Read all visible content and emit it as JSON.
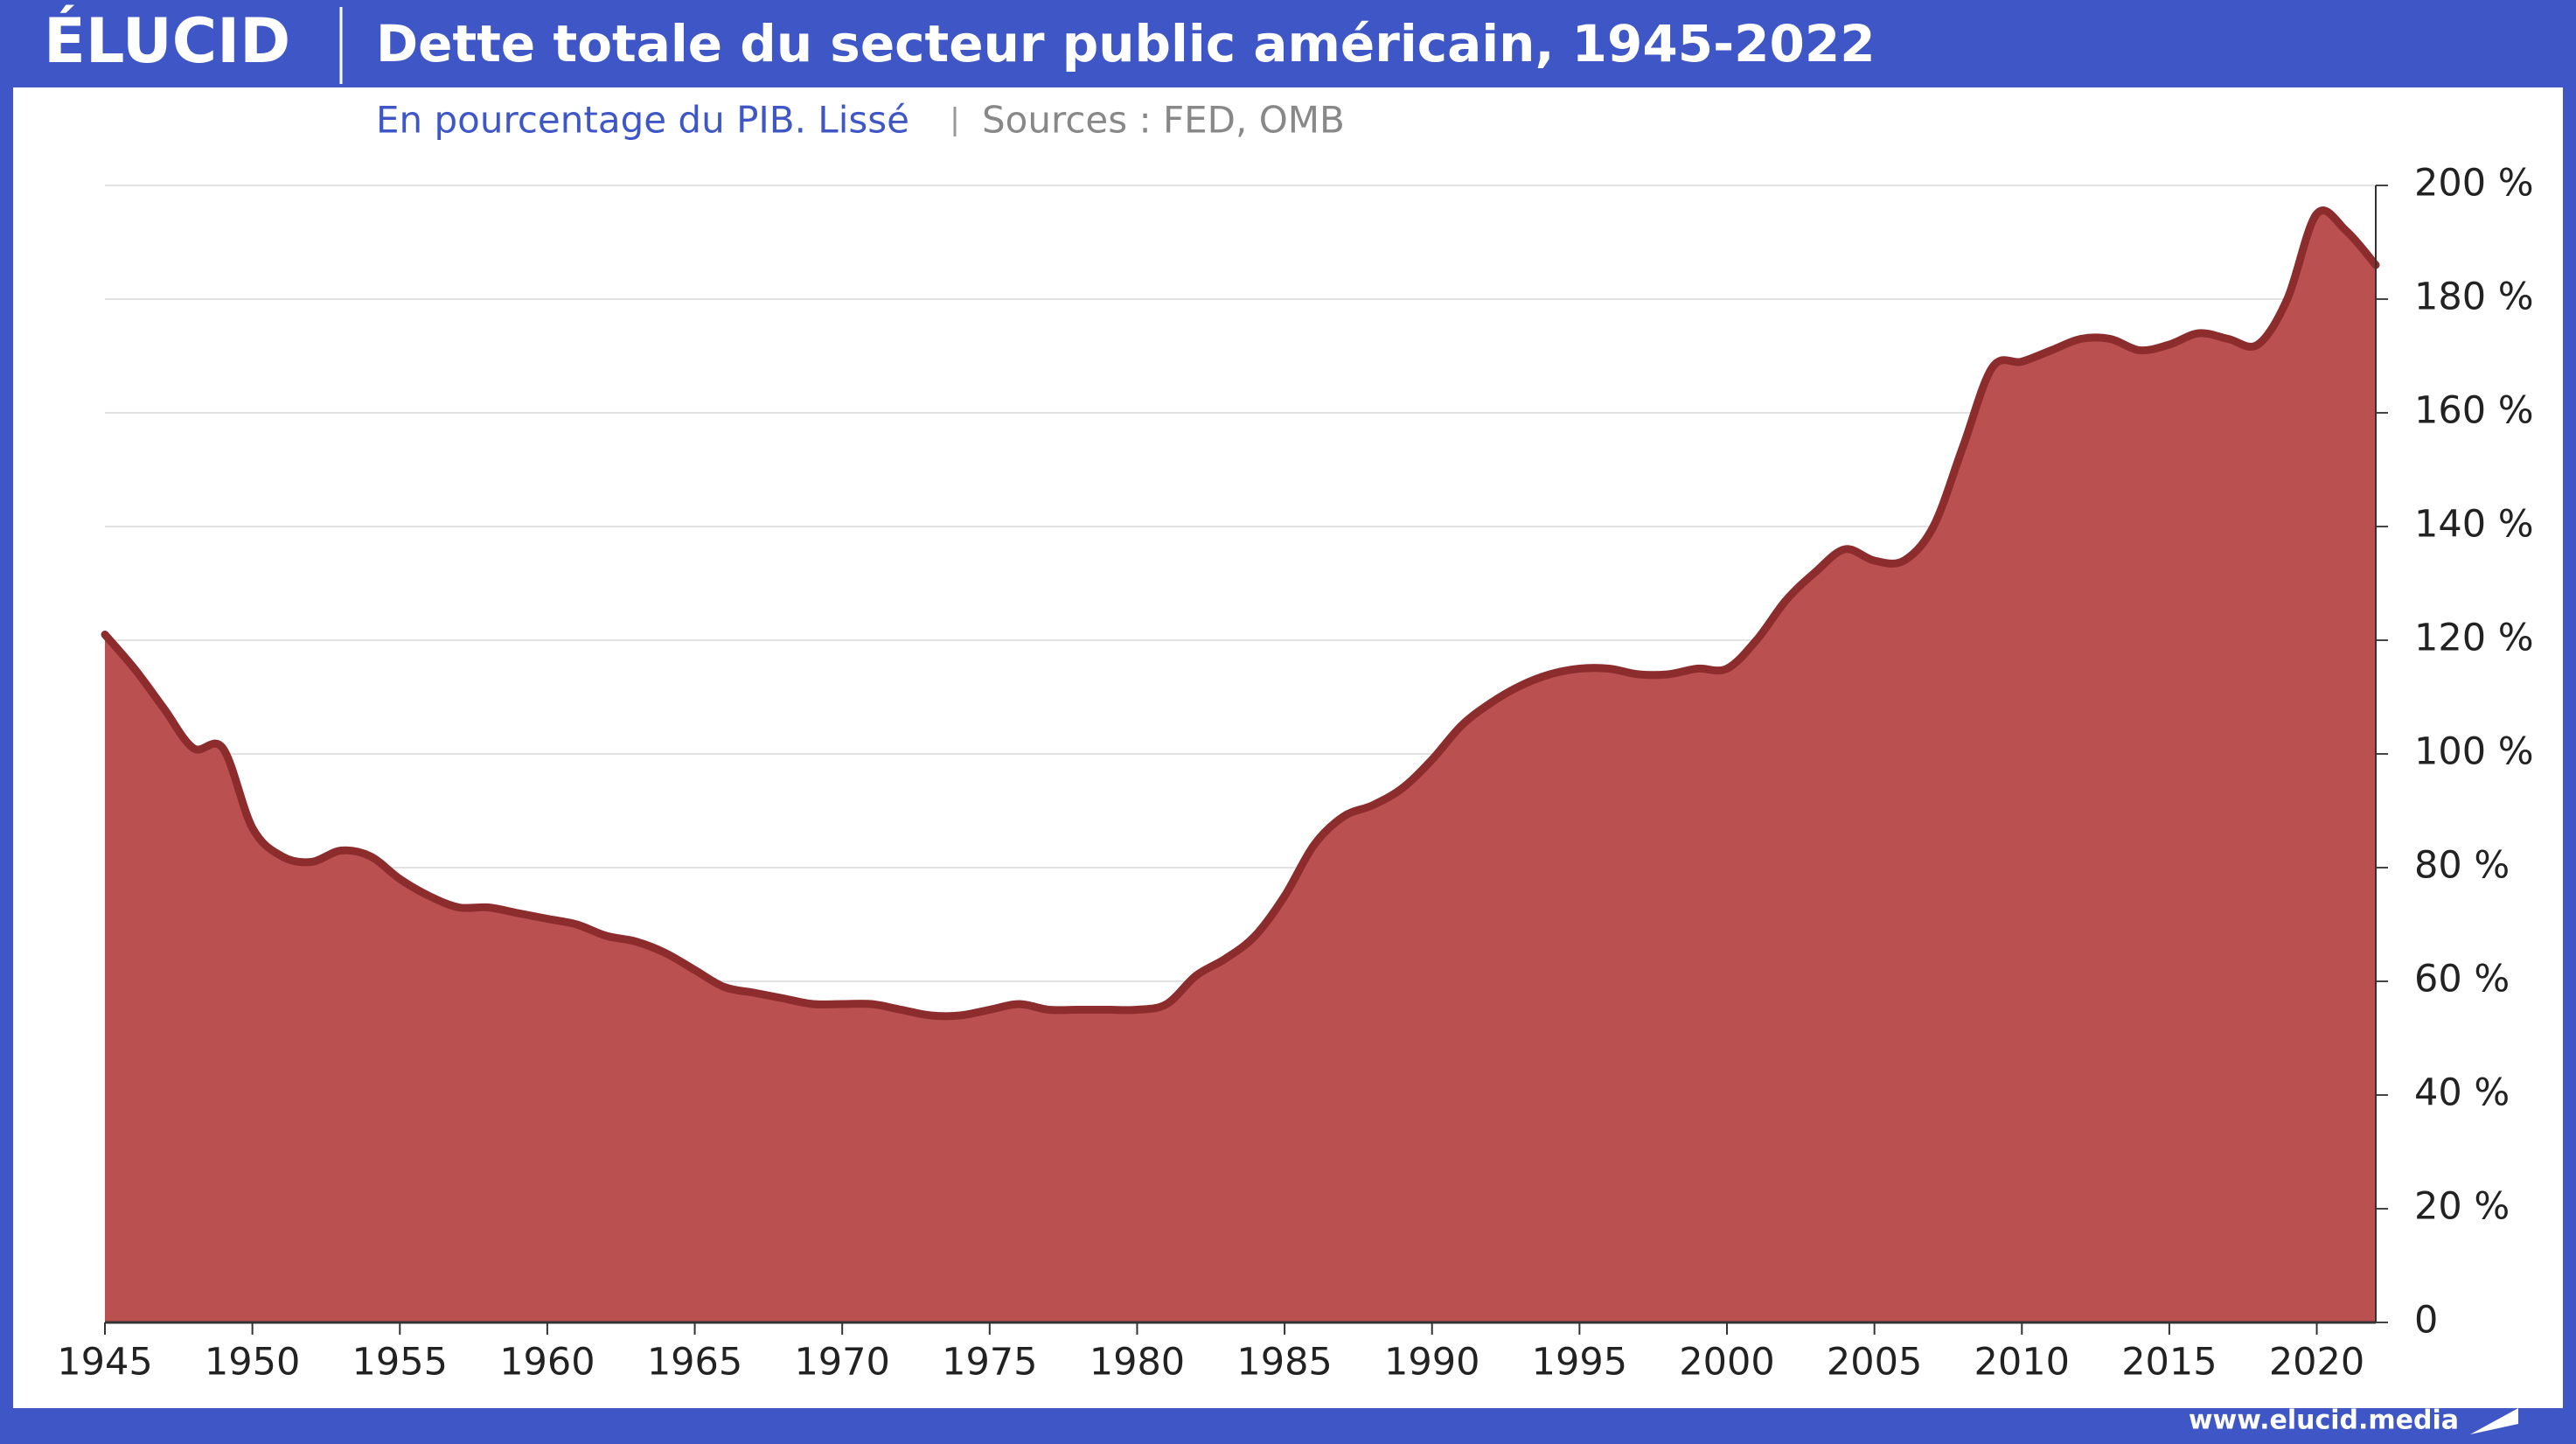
{
  "logo": "ÉLUCID",
  "footer": "www.elucid.media",
  "chart_data": {
    "type": "area",
    "title": "Dette totale du secteur public américain, 1945-2022",
    "subtitle": "En pourcentage du PIB. Lissé",
    "source": "Sources : FED, OMB",
    "color": "#bb5050",
    "line_color": "#8c2c2c",
    "grid": true,
    "x": [
      1945,
      1946,
      1947,
      1948,
      1949,
      1950,
      1951,
      1952,
      1953,
      1954,
      1955,
      1956,
      1957,
      1958,
      1959,
      1960,
      1961,
      1962,
      1963,
      1964,
      1965,
      1966,
      1967,
      1968,
      1969,
      1970,
      1971,
      1972,
      1973,
      1974,
      1975,
      1976,
      1977,
      1978,
      1979,
      1980,
      1981,
      1982,
      1983,
      1984,
      1985,
      1986,
      1987,
      1988,
      1989,
      1990,
      1991,
      1992,
      1993,
      1994,
      1995,
      1996,
      1997,
      1998,
      1999,
      2000,
      2001,
      2002,
      2003,
      2004,
      2005,
      2006,
      2007,
      2008,
      2009,
      2010,
      2011,
      2012,
      2013,
      2014,
      2015,
      2016,
      2017,
      2018,
      2019,
      2020,
      2021,
      2022
    ],
    "values": [
      121,
      115,
      108,
      101,
      101,
      87,
      82,
      81,
      83,
      82,
      78,
      75,
      73,
      73,
      72,
      71,
      70,
      68,
      67,
      65,
      62,
      59,
      58,
      57,
      56,
      56,
      56,
      55,
      54,
      54,
      55,
      56,
      55,
      55,
      55,
      55,
      56,
      61,
      64,
      68,
      75,
      84,
      89,
      91,
      94,
      99,
      105,
      109,
      112,
      114,
      115,
      115,
      114,
      114,
      115,
      115,
      120,
      127,
      132,
      136,
      134,
      134,
      140,
      154,
      168,
      169,
      171,
      173,
      173,
      171,
      172,
      174,
      173,
      172,
      180,
      195,
      192,
      186
    ],
    "xlim": [
      1945,
      2022
    ],
    "xticks": [
      1945,
      1950,
      1955,
      1960,
      1965,
      1970,
      1975,
      1980,
      1985,
      1990,
      1995,
      2000,
      2005,
      2010,
      2015,
      2020
    ],
    "ylim": [
      0,
      200
    ],
    "yticks": [
      0,
      {
        "value": 20,
        "label": "20 %"
      },
      {
        "value": 40,
        "label": "40 %"
      },
      {
        "value": 60,
        "label": "60 %"
      },
      {
        "value": 80,
        "label": "80 %"
      },
      {
        "value": 100,
        "label": "100 %"
      },
      {
        "value": 120,
        "label": "120 %"
      },
      {
        "value": 140,
        "label": "140 %"
      },
      {
        "value": 160,
        "label": "160 %"
      },
      {
        "value": 180,
        "label": "180 %"
      },
      {
        "value": 200,
        "label": "200 %"
      }
    ]
  }
}
